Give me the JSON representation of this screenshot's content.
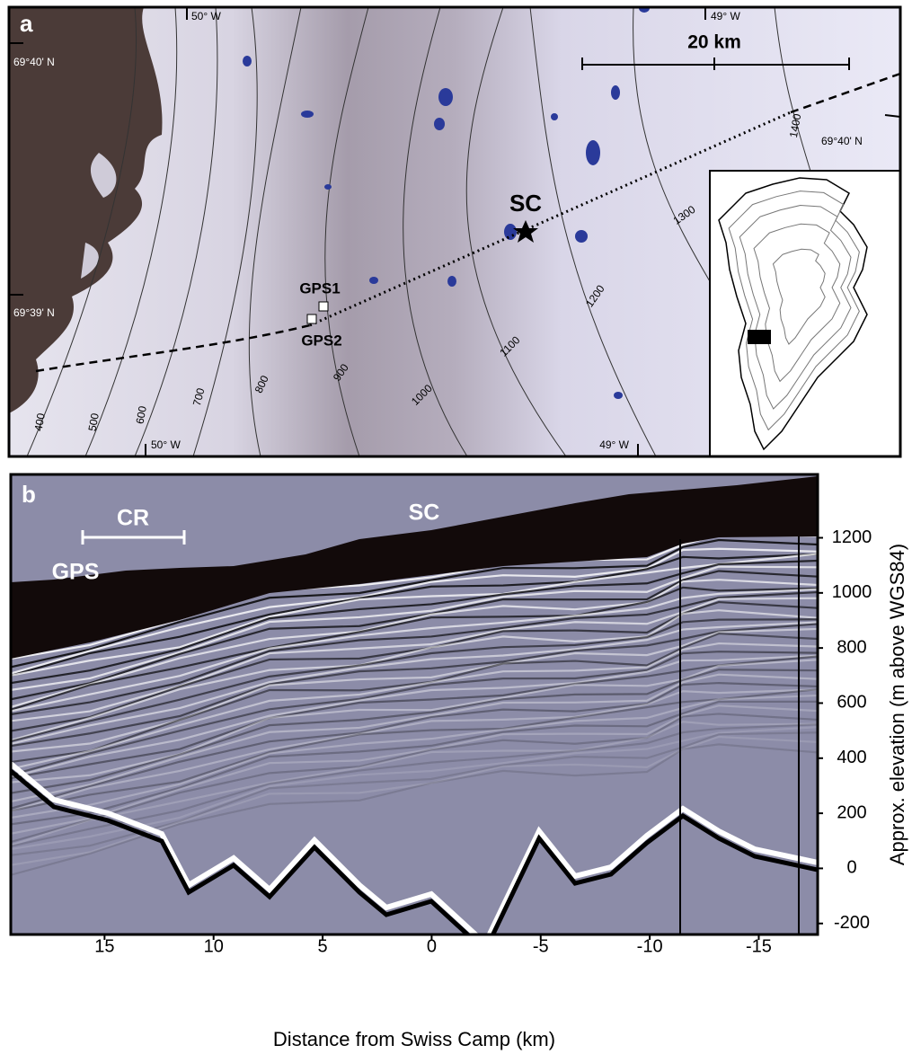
{
  "panel_a": {
    "label": "a",
    "scale_bar": "20 km",
    "longitudes_top": [
      "50° W",
      "49° W"
    ],
    "longitudes_bottom": [
      "50° W",
      "49° W"
    ],
    "latitudes_left": [
      "69°40' N",
      "69°39' N"
    ],
    "latitude_right": "69°40' N",
    "sites": {
      "sc": "SC",
      "gps1": "GPS1",
      "gps2": "GPS2"
    },
    "contour_labels": [
      "400",
      "500",
      "600",
      "700",
      "800",
      "900",
      "1000",
      "1100",
      "1200",
      "1300",
      "1400"
    ]
  },
  "panel_b": {
    "label": "b",
    "annotations": {
      "cr": "CR",
      "sc": "SC",
      "gps": "GPS"
    },
    "xlabel": "Distance from Swiss Camp (km)",
    "ylabel": "Approx. elevation (m above WGS84)",
    "xlim": [
      19.3,
      -17.7
    ],
    "ylim": [
      -240,
      1430
    ],
    "xticks": [
      15,
      10,
      5,
      0,
      -5,
      -10,
      -15
    ],
    "yticks": [
      -200,
      0,
      200,
      400,
      600,
      800,
      1000,
      1200
    ]
  }
}
